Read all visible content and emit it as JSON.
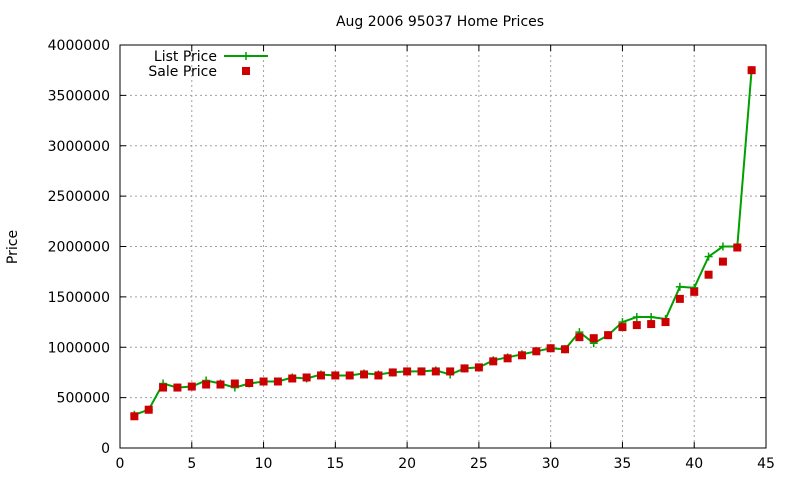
{
  "chart_data": {
    "type": "line",
    "title": "Aug 2006 95037 Home Prices",
    "xlabel": "",
    "ylabel": "Price",
    "xlim": [
      0,
      45
    ],
    "ylim": [
      0,
      4000000
    ],
    "x_ticks": [
      "0",
      "5",
      "10",
      "15",
      "20",
      "25",
      "30",
      "35",
      "40",
      "45"
    ],
    "y_ticks": [
      "0",
      "500000",
      "1000000",
      "1500000",
      "2000000",
      "2500000",
      "3000000",
      "3500000",
      "4000000"
    ],
    "grid": true,
    "legend_position": "top-left",
    "colors": {
      "list": "#00a000",
      "sale": "#cc0000"
    },
    "series": [
      {
        "name": "List Price",
        "style": "lines+crosses",
        "x": [
          1,
          2,
          3,
          4,
          5,
          6,
          7,
          8,
          9,
          10,
          11,
          12,
          13,
          14,
          15,
          16,
          17,
          18,
          19,
          20,
          21,
          22,
          23,
          24,
          25,
          26,
          27,
          28,
          29,
          30,
          31,
          32,
          33,
          34,
          35,
          36,
          37,
          38,
          39,
          40,
          41,
          42,
          43,
          44
        ],
        "values": [
          330000,
          380000,
          640000,
          600000,
          610000,
          670000,
          640000,
          600000,
          640000,
          660000,
          660000,
          700000,
          690000,
          730000,
          720000,
          720000,
          740000,
          730000,
          750000,
          760000,
          760000,
          770000,
          730000,
          790000,
          800000,
          870000,
          900000,
          930000,
          960000,
          990000,
          980000,
          1150000,
          1040000,
          1120000,
          1250000,
          1300000,
          1300000,
          1280000,
          1600000,
          1590000,
          1900000,
          2000000,
          2000000,
          3750000
        ]
      },
      {
        "name": "Sale Price",
        "style": "points",
        "x": [
          1,
          2,
          3,
          4,
          5,
          6,
          7,
          8,
          9,
          10,
          11,
          12,
          13,
          14,
          15,
          16,
          17,
          18,
          19,
          20,
          21,
          22,
          23,
          24,
          25,
          26,
          27,
          28,
          29,
          30,
          31,
          32,
          33,
          34,
          35,
          36,
          37,
          38,
          39,
          40,
          41,
          42,
          43,
          44
        ],
        "values": [
          315000,
          380000,
          600000,
          600000,
          610000,
          630000,
          630000,
          640000,
          645000,
          660000,
          660000,
          690000,
          700000,
          720000,
          720000,
          720000,
          730000,
          720000,
          750000,
          760000,
          760000,
          760000,
          760000,
          790000,
          800000,
          860000,
          890000,
          920000,
          960000,
          990000,
          980000,
          1100000,
          1090000,
          1120000,
          1200000,
          1220000,
          1230000,
          1250000,
          1480000,
          1550000,
          1720000,
          1850000,
          1990000,
          3750000
        ]
      }
    ]
  }
}
